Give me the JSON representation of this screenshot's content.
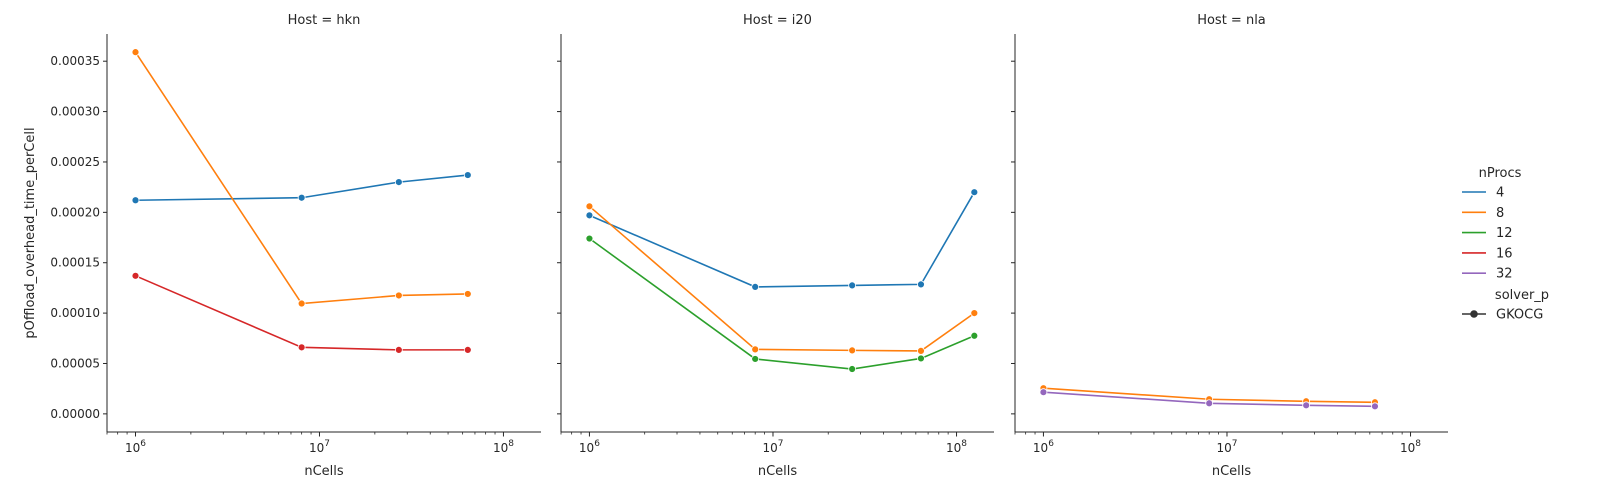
{
  "chart_data": {
    "type": "line",
    "xscale": "log",
    "xlim": [
      700000,
      160000000
    ],
    "ylim": [
      -1.8e-05,
      0.000377
    ],
    "xlabel": "nCells",
    "ylabel": "pOffload_overhead_time_perCell",
    "x_ticks": [
      {
        "value": 1000000,
        "base": "10",
        "exp": "6"
      },
      {
        "value": 10000000,
        "base": "10",
        "exp": "7"
      },
      {
        "value": 100000000,
        "base": "10",
        "exp": "8"
      }
    ],
    "y_ticks": [
      {
        "value": 0,
        "label": "0.00000"
      },
      {
        "value": 5e-05,
        "label": "0.00005"
      },
      {
        "value": 0.0001,
        "label": "0.00010"
      },
      {
        "value": 0.00015,
        "label": "0.00015"
      },
      {
        "value": 0.0002,
        "label": "0.00020"
      },
      {
        "value": 0.00025,
        "label": "0.00025"
      },
      {
        "value": 0.0003,
        "label": "0.00030"
      },
      {
        "value": 0.00035,
        "label": "0.00035"
      }
    ],
    "legend": {
      "title": "nProcs",
      "placement": "right",
      "entries": [
        {
          "label": "4",
          "color": "#1f77b4"
        },
        {
          "label": "8",
          "color": "#ff7f0e"
        },
        {
          "label": "12",
          "color": "#2ca02c"
        },
        {
          "label": "16",
          "color": "#d62728"
        },
        {
          "label": "32",
          "color": "#9467bd"
        }
      ],
      "style_title": "solver_p",
      "style_entries": [
        {
          "label": "GKOCG",
          "color": "#333333"
        }
      ]
    },
    "panels": [
      {
        "title": "Host = hkn",
        "series": [
          {
            "name": "4",
            "color": "#1f77b4",
            "points": [
              [
                1000000,
                0.000212
              ],
              [
                8000000,
                0.0002145
              ],
              [
                27000000,
                0.00023
              ],
              [
                64000000,
                0.000237
              ]
            ]
          },
          {
            "name": "8",
            "color": "#ff7f0e",
            "points": [
              [
                1000000,
                0.000359
              ],
              [
                8000000,
                0.0001095
              ],
              [
                27000000,
                0.0001175
              ],
              [
                64000000,
                0.000119
              ]
            ]
          },
          {
            "name": "16",
            "color": "#d62728",
            "points": [
              [
                1000000,
                0.000137
              ],
              [
                8000000,
                6.6e-05
              ],
              [
                27000000,
                6.35e-05
              ],
              [
                64000000,
                6.35e-05
              ]
            ]
          }
        ]
      },
      {
        "title": "Host = i20",
        "series": [
          {
            "name": "4",
            "color": "#1f77b4",
            "points": [
              [
                1000000,
                0.000197
              ],
              [
                8000000,
                0.000126
              ],
              [
                27000000,
                0.0001275
              ],
              [
                64000000,
                0.0001285
              ],
              [
                125000000,
                0.00022
              ]
            ]
          },
          {
            "name": "8",
            "color": "#ff7f0e",
            "points": [
              [
                1000000,
                0.000206
              ],
              [
                8000000,
                6.4e-05
              ],
              [
                27000000,
                6.3e-05
              ],
              [
                64000000,
                6.25e-05
              ],
              [
                125000000,
                0.0001
              ]
            ]
          },
          {
            "name": "12",
            "color": "#2ca02c",
            "points": [
              [
                1000000,
                0.000174
              ],
              [
                8000000,
                5.45e-05
              ],
              [
                27000000,
                4.45e-05
              ],
              [
                64000000,
                5.5e-05
              ],
              [
                125000000,
                7.75e-05
              ]
            ]
          }
        ]
      },
      {
        "title": "Host = nla",
        "series": [
          {
            "name": "8",
            "color": "#ff7f0e",
            "points": [
              [
                1000000,
                2.55e-05
              ],
              [
                8000000,
                1.45e-05
              ],
              [
                27000000,
                1.25e-05
              ],
              [
                64000000,
                1.15e-05
              ]
            ]
          },
          {
            "name": "32",
            "color": "#9467bd",
            "points": [
              [
                1000000,
                2.15e-05
              ],
              [
                8000000,
                1.05e-05
              ],
              [
                27000000,
                8.5e-06
              ],
              [
                64000000,
                7.5e-06
              ]
            ]
          }
        ]
      }
    ]
  }
}
